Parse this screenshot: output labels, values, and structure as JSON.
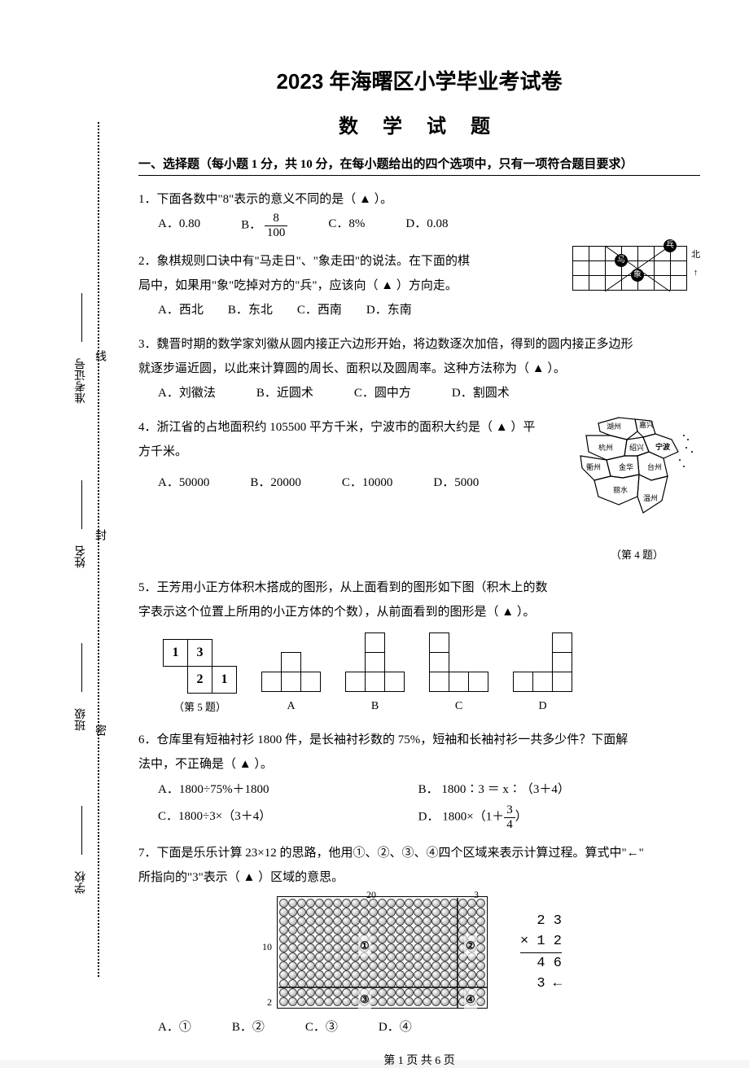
{
  "title": "2023 年海曙区小学毕业考试卷",
  "subtitle": "数 学 试 题",
  "section1": {
    "header": "一、选择题（每小题 1 分，共 10 分，在每小题给出的四个选项中，只有一项符合题目要求）"
  },
  "margin": {
    "school": "学校",
    "class": "班级",
    "name": "姓名",
    "examno": "准考证号",
    "seal1": "密",
    "seal2": "封",
    "seal3": "线"
  },
  "q1": {
    "stem": "1．下面各数中\"8\"表示的意义不同的是（ ▲ ）。",
    "optA": "A．0.80",
    "optB_prefix": "B．",
    "optB_num": "8",
    "optB_den": "100",
    "optC": "C．8%",
    "optD": "D．0.08"
  },
  "q2": {
    "stem1": "2．象棋规则口诀中有\"马走日\"、\"象走田\"的说法。在下面的棋",
    "stem2": "局中，如果用\"象\"吃掉对方的\"兵\"，应该向（ ▲ ）方向走。",
    "optA": "A．西北",
    "optB": "B．东北",
    "optC": "C．西南",
    "optD": "D．东南",
    "compass": "北",
    "piece_ma": "马",
    "piece_xiang": "象",
    "piece_bing": "兵"
  },
  "q3": {
    "stem1": "3．魏晋时期的数学家刘徽从圆内接正六边形开始，将边数逐次加倍，得到的圆内接正多边形",
    "stem2": "就逐步逼近圆，以此来计算圆的周长、面积以及圆周率。这种方法称为（ ▲ ）。",
    "optA": "A．刘徽法",
    "optB": "B．近圆术",
    "optC": "C．圆中方",
    "optD": "D．割圆术"
  },
  "q4": {
    "stem1": "4．浙江省的占地面积约 105500 平方千米，宁波市的面积大约是（ ▲ ）平",
    "stem2": "方千米。",
    "optA": "A．50000",
    "optB": "B．20000",
    "optC": "C．10000",
    "optD": "D．5000",
    "caption": "（第 4 题）",
    "cities": [
      "湖州",
      "嘉兴",
      "杭州",
      "绍兴",
      "宁波",
      "衢州",
      "金华",
      "台州",
      "丽水",
      "温州"
    ]
  },
  "q5": {
    "stem1": "5．王芳用小正方体积木搭成的图形，从上面看到的图形如下图（积木上的数",
    "stem2": "字表示这个位置上所用的小正方体的个数），从前面看到的图形是（ ▲ ）。",
    "grid": [
      [
        "1",
        "3"
      ],
      [
        "",
        "2"
      ],
      [
        "",
        "1"
      ]
    ],
    "caption": "（第 5 题）",
    "letters": [
      "A",
      "B",
      "C",
      "D"
    ]
  },
  "q6": {
    "stem1": "6．仓库里有短袖衬衫 1800 件，是长袖衬衫数的 75%，短袖和长袖衬衫一共多少件？下面解",
    "stem2": "法中，不正确是（ ▲ ）。",
    "optA": "A．1800÷75%＋1800",
    "optB": "B．  1800∶3 ＝ x∶（3＋4）",
    "optC": "C．1800÷3×（3＋4）",
    "optD_prefix": "D．  1800×（1＋",
    "optD_num": "3",
    "optD_den": "4",
    "optD_suffix": "）"
  },
  "q7": {
    "stem1": "7．下面是乐乐计算 23×12 的思路，他用①、②、③、④四个区域来表示计算过程。算式中\"←\"",
    "stem2": "所指向的\"3\"表示（ ▲ ）区域的意思。",
    "dim_top": "20",
    "dim_top_r": "3",
    "dim_left_1": "10",
    "dim_left_2": "2",
    "region1": "①",
    "region2": "②",
    "region3": "③",
    "region4": "④",
    "calc_line1": "2 3",
    "calc_line2": "× 1 2",
    "calc_line3": "4 6",
    "calc_line4": "3 ←",
    "optA": "A．①",
    "optB": "B．②",
    "optC": "C．③",
    "optD": "D．④"
  },
  "footer": "第 1 页 共 6 页"
}
